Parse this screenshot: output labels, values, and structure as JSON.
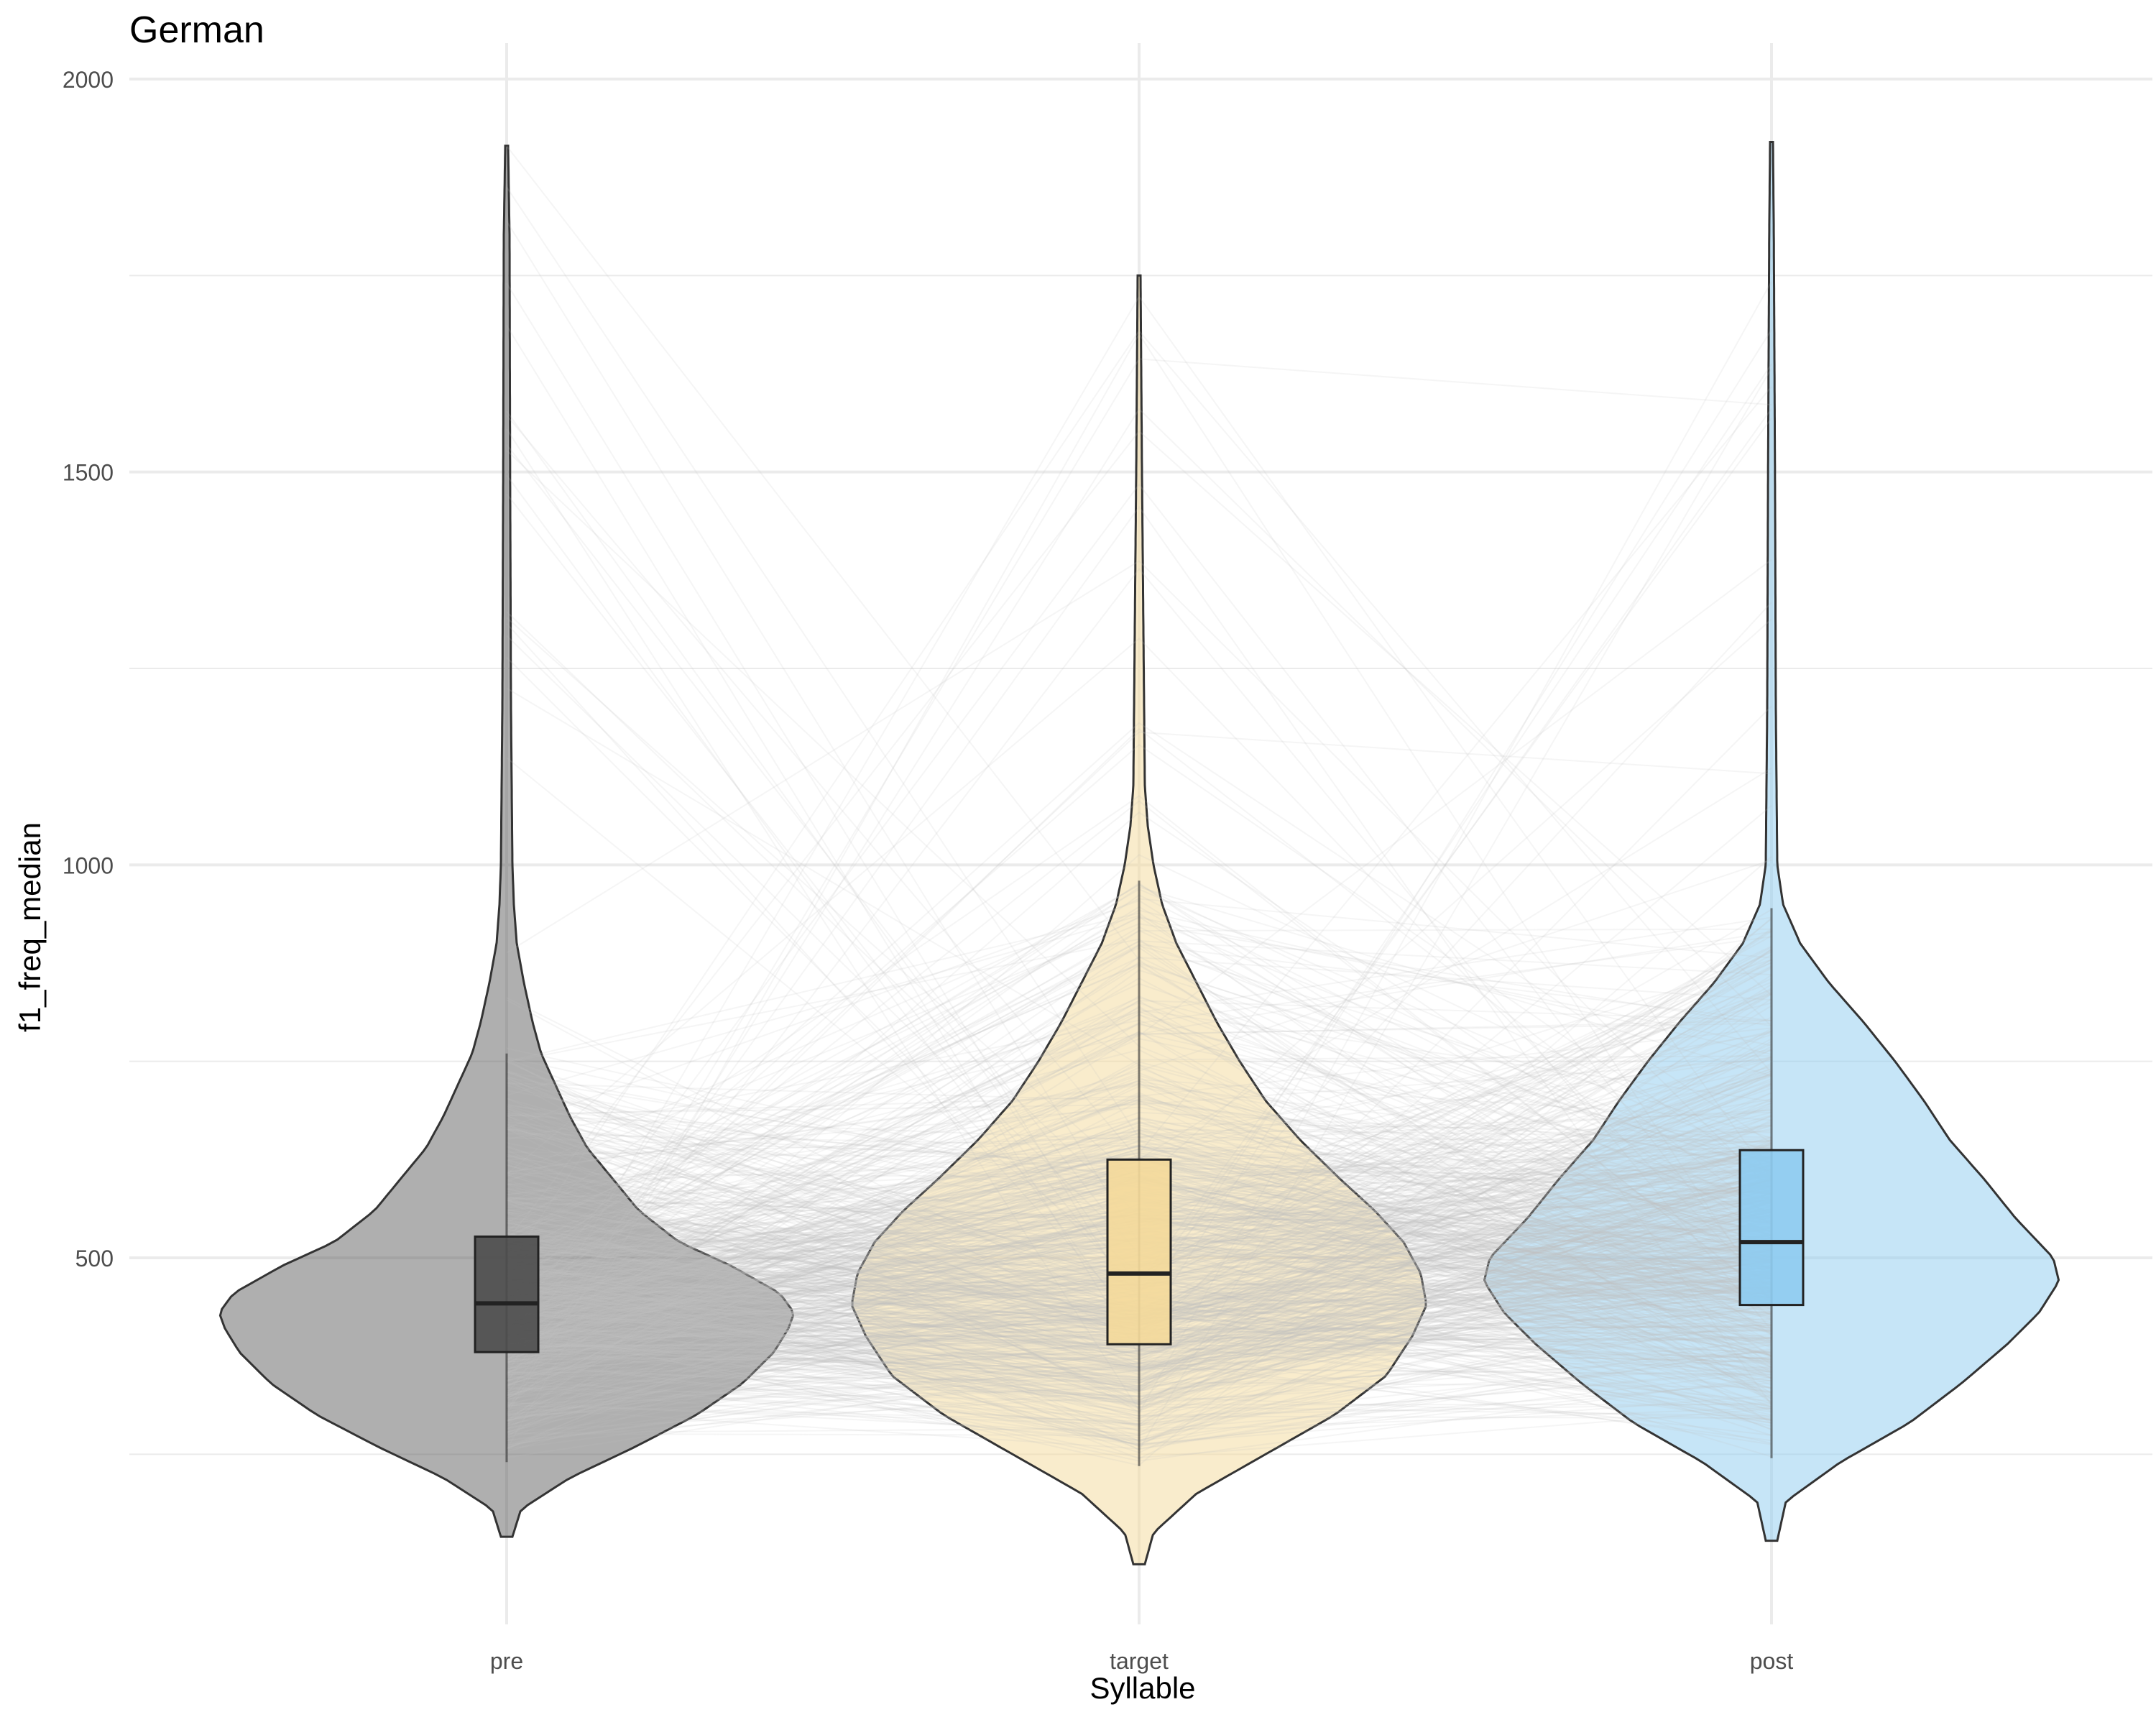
{
  "chart_data": {
    "type": "violin",
    "title": "German",
    "xlabel": "Syllable",
    "ylabel": "f1_freq_median",
    "ylim": [
      50,
      2080
    ],
    "y_ticks": [
      500,
      1000,
      1500,
      2000
    ],
    "y_minor_ticks": [
      250,
      750,
      1250,
      1750
    ],
    "categories": [
      "pre",
      "target",
      "post"
    ],
    "grid": true,
    "legend": "none",
    "colors": {
      "pre": "#4d4d4d",
      "target": "#f4d99a",
      "post": "#8ecbef",
      "overlay": "#bfbfbf",
      "grid": "#ebebeb",
      "outline": "#333333"
    },
    "groups": [
      {
        "name": "pre",
        "box": {
          "q1": 380,
          "median": 442,
          "q3": 527
        },
        "whisker": [
          240,
          760
        ],
        "range": [
          145,
          1915
        ],
        "density": [
          [
            145,
            0.02
          ],
          [
            180,
            0.05
          ],
          [
            220,
            0.22
          ],
          [
            260,
            0.45
          ],
          [
            300,
            0.66
          ],
          [
            340,
            0.82
          ],
          [
            380,
            0.93
          ],
          [
            410,
            0.98
          ],
          [
            430,
            1.0
          ],
          [
            455,
            0.95
          ],
          [
            490,
            0.78
          ],
          [
            520,
            0.6
          ],
          [
            560,
            0.46
          ],
          [
            600,
            0.37
          ],
          [
            640,
            0.28
          ],
          [
            680,
            0.22
          ],
          [
            720,
            0.17
          ],
          [
            760,
            0.12
          ],
          [
            800,
            0.09
          ],
          [
            850,
            0.06
          ],
          [
            900,
            0.035
          ],
          [
            950,
            0.025
          ],
          [
            1000,
            0.02
          ],
          [
            1200,
            0.015
          ],
          [
            1500,
            0.012
          ],
          [
            1800,
            0.01
          ],
          [
            1915,
            0.005
          ]
        ]
      },
      {
        "name": "target",
        "box": {
          "q1": 390,
          "median": 480,
          "q3": 625
        },
        "whisker": [
          235,
          980
        ],
        "range": [
          110,
          1750
        ],
        "density": [
          [
            110,
            0.02
          ],
          [
            150,
            0.05
          ],
          [
            200,
            0.2
          ],
          [
            250,
            0.44
          ],
          [
            300,
            0.68
          ],
          [
            350,
            0.86
          ],
          [
            400,
            0.95
          ],
          [
            440,
            1.0
          ],
          [
            480,
            0.98
          ],
          [
            520,
            0.92
          ],
          [
            560,
            0.82
          ],
          [
            600,
            0.7
          ],
          [
            650,
            0.56
          ],
          [
            700,
            0.44
          ],
          [
            750,
            0.35
          ],
          [
            800,
            0.27
          ],
          [
            850,
            0.2
          ],
          [
            900,
            0.13
          ],
          [
            950,
            0.08
          ],
          [
            1000,
            0.05
          ],
          [
            1050,
            0.03
          ],
          [
            1100,
            0.02
          ],
          [
            1300,
            0.015
          ],
          [
            1500,
            0.01
          ],
          [
            1750,
            0.005
          ]
        ]
      },
      {
        "name": "post",
        "box": {
          "q1": 440,
          "median": 520,
          "q3": 637
        },
        "whisker": [
          245,
          945
        ],
        "range": [
          140,
          1920
        ],
        "density": [
          [
            140,
            0.02
          ],
          [
            190,
            0.05
          ],
          [
            240,
            0.24
          ],
          [
            290,
            0.48
          ],
          [
            340,
            0.66
          ],
          [
            390,
            0.82
          ],
          [
            430,
            0.93
          ],
          [
            470,
            1.0
          ],
          [
            500,
            0.98
          ],
          [
            550,
            0.85
          ],
          [
            600,
            0.74
          ],
          [
            650,
            0.62
          ],
          [
            700,
            0.53
          ],
          [
            750,
            0.43
          ],
          [
            800,
            0.32
          ],
          [
            850,
            0.2
          ],
          [
            900,
            0.1
          ],
          [
            950,
            0.04
          ],
          [
            1000,
            0.02
          ],
          [
            1200,
            0.015
          ],
          [
            1500,
            0.012
          ],
          [
            1800,
            0.008
          ],
          [
            1920,
            0.005
          ]
        ]
      }
    ]
  }
}
